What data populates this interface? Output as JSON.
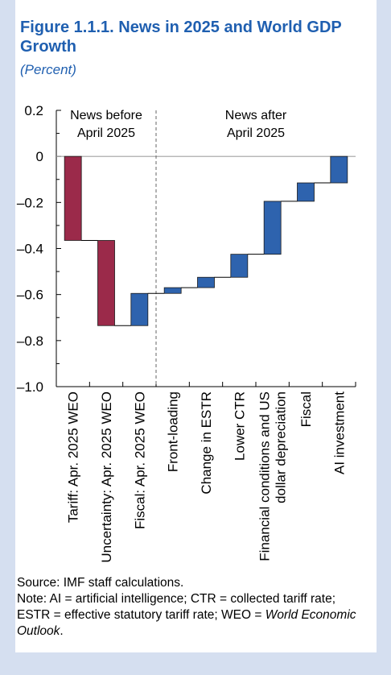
{
  "header": {
    "title": "Figure 1.1.1.  News in 2025 and World GDP Growth",
    "unit": "(Percent)"
  },
  "colors": {
    "before": "#9b2a4a",
    "after": "#2e63ae"
  },
  "chart_data": {
    "type": "bar",
    "subtype": "waterfall",
    "ylim": [
      -1.0,
      0.2
    ],
    "yticks": [
      "0.2",
      "0",
      "–0.2",
      "–0.4",
      "–0.6",
      "–0.8",
      "–1.0"
    ],
    "ytick_values": [
      0.2,
      0,
      -0.2,
      -0.4,
      -0.6,
      -0.8,
      -1.0
    ],
    "groups": [
      {
        "label_line1": "News before",
        "label_line2": "April 2025"
      },
      {
        "label_line1": "News after",
        "label_line2": "April 2025"
      }
    ],
    "categories": [
      {
        "label": [
          "Tariff: Apr. 2025 WEO"
        ],
        "start": 0.0,
        "end": -0.365,
        "group": "before"
      },
      {
        "label": [
          "Uncertainty: Apr. 2025 WEO"
        ],
        "start": -0.365,
        "end": -0.735,
        "group": "before"
      },
      {
        "label": [
          "Fiscal: Apr. 2025 WEO"
        ],
        "start": -0.735,
        "end": -0.595,
        "group": "after"
      },
      {
        "label": [
          "Front-loading"
        ],
        "start": -0.595,
        "end": -0.57,
        "group": "after"
      },
      {
        "label": [
          "Change in ESTR"
        ],
        "start": -0.57,
        "end": -0.525,
        "group": "after"
      },
      {
        "label": [
          "Lower CTR"
        ],
        "start": -0.525,
        "end": -0.425,
        "group": "after"
      },
      {
        "label": [
          "Financial conditions and US",
          "dollar depreciation"
        ],
        "start": -0.425,
        "end": -0.195,
        "group": "after"
      },
      {
        "label": [
          "Fiscal"
        ],
        "start": -0.195,
        "end": -0.115,
        "group": "after"
      },
      {
        "label": [
          "AI investment"
        ],
        "start": -0.115,
        "end": 0.0,
        "group": "after"
      }
    ]
  },
  "notes": {
    "source": "Source: IMF staff calculations.",
    "note_main": "Note: AI = artificial intelligence; CTR = collected tariff rate; ESTR = effective statutory tariff rate; WEO = ",
    "note_italic": "World Economic Outlook",
    "note_end": "."
  }
}
